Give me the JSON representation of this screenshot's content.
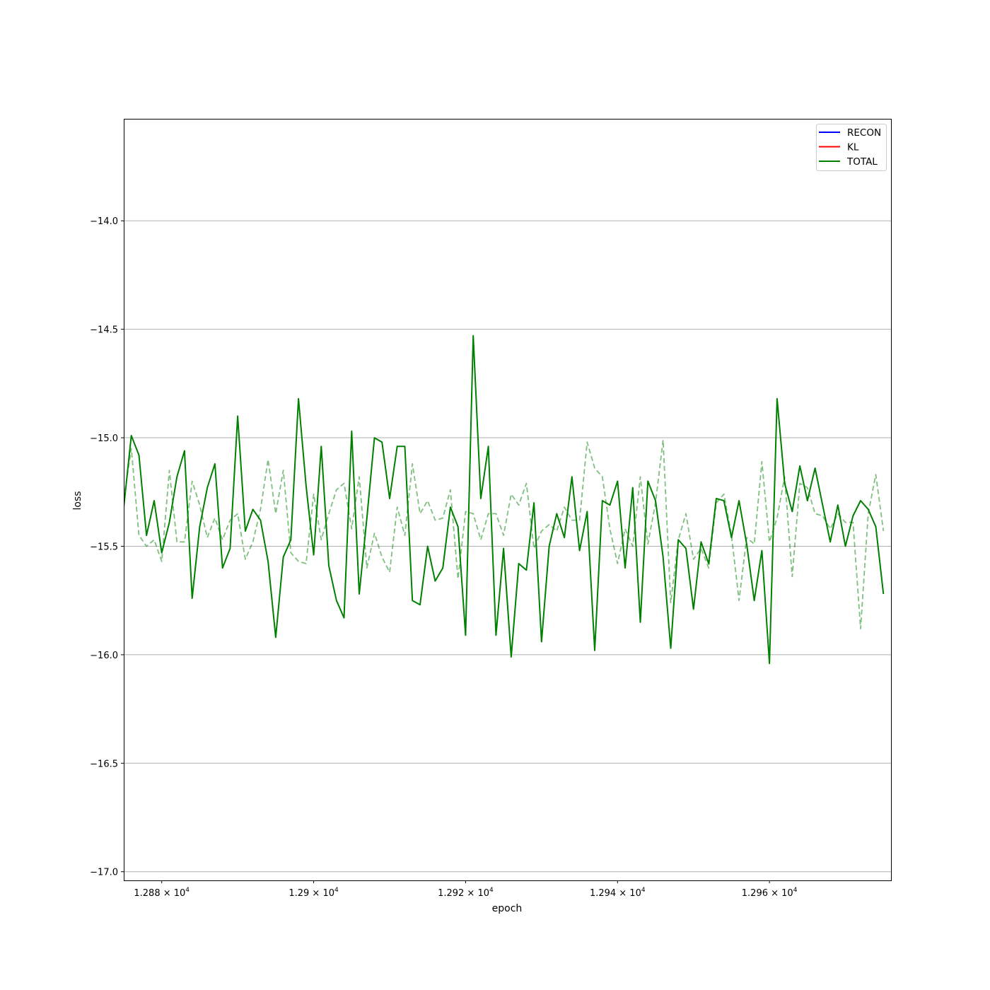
{
  "chart_data": {
    "type": "line",
    "title": "",
    "xlabel": "epoch",
    "ylabel": "loss",
    "xlim": [
      12875,
      12976
    ],
    "ylim": [
      -17.04,
      -13.53
    ],
    "grid": "horizontal",
    "legend_position": "top-right",
    "x_ticks": [
      {
        "value": 12880,
        "base": "1.288 × 10",
        "exp": "4"
      },
      {
        "value": 12900,
        "base": "1.29 × 10",
        "exp": "4"
      },
      {
        "value": 12920,
        "base": "1.292 × 10",
        "exp": "4"
      },
      {
        "value": 12940,
        "base": "1.294 × 10",
        "exp": "4"
      },
      {
        "value": 12960,
        "base": "1.296 × 10",
        "exp": "4"
      }
    ],
    "y_ticks": [
      {
        "value": -14.0,
        "label": "−14.0"
      },
      {
        "value": -14.5,
        "label": "−14.5"
      },
      {
        "value": -15.0,
        "label": "−15.0"
      },
      {
        "value": -15.5,
        "label": "−15.5"
      },
      {
        "value": -16.0,
        "label": "−16.0"
      },
      {
        "value": -16.5,
        "label": "−16.5"
      },
      {
        "value": -17.0,
        "label": "−17.0"
      }
    ],
    "legend": [
      {
        "name": "RECON",
        "color": "#0000ff"
      },
      {
        "name": "KL",
        "color": "#ff0000"
      },
      {
        "name": "TOTAL",
        "color": "#008000"
      }
    ],
    "x_start": 12875,
    "series": [
      {
        "name": "TOTAL",
        "style": "solid",
        "color": "#008000",
        "values": [
          -15.32,
          -14.99,
          -15.08,
          -15.45,
          -15.29,
          -15.53,
          -15.39,
          -15.18,
          -15.06,
          -15.74,
          -15.41,
          -15.23,
          -15.12,
          -15.6,
          -15.51,
          -14.9,
          -15.43,
          -15.33,
          -15.38,
          -15.57,
          -15.92,
          -15.55,
          -15.47,
          -14.82,
          -15.22,
          -15.54,
          -15.04,
          -15.59,
          -15.75,
          -15.83,
          -14.97,
          -15.72,
          -15.37,
          -15.0,
          -15.02,
          -15.28,
          -15.04,
          -15.04,
          -15.75,
          -15.77,
          -15.5,
          -15.66,
          -15.6,
          -15.32,
          -15.41,
          -15.91,
          -14.53,
          -15.28,
          -15.04,
          -15.91,
          -15.51,
          -16.01,
          -15.58,
          -15.61,
          -15.3,
          -15.94,
          -15.5,
          -15.35,
          -15.46,
          -15.18,
          -15.52,
          -15.34,
          -15.98,
          -15.29,
          -15.31,
          -15.2,
          -15.6,
          -15.23,
          -15.85,
          -15.2,
          -15.29,
          -15.55,
          -15.97,
          -15.47,
          -15.51,
          -15.79,
          -15.48,
          -15.58,
          -15.28,
          -15.29,
          -15.46,
          -15.29,
          -15.49,
          -15.75,
          -15.52,
          -16.04,
          -14.82,
          -15.21,
          -15.34,
          -15.13,
          -15.29,
          -15.14,
          -15.31,
          -15.48,
          -15.31,
          -15.5,
          -15.36,
          -15.29,
          -15.33,
          -15.41,
          -15.72
        ]
      },
      {
        "name": "",
        "style": "dashed",
        "color": "#008000",
        "opacity": 0.5,
        "values": [
          -15.28,
          -15.05,
          -15.45,
          -15.5,
          -15.47,
          -15.57,
          -15.15,
          -15.48,
          -15.48,
          -15.2,
          -15.31,
          -15.46,
          -15.37,
          -15.47,
          -15.38,
          -15.35,
          -15.56,
          -15.48,
          -15.33,
          -15.1,
          -15.35,
          -15.15,
          -15.53,
          -15.57,
          -15.58,
          -15.26,
          -15.47,
          -15.35,
          -15.24,
          -15.21,
          -15.42,
          -15.18,
          -15.6,
          -15.44,
          -15.55,
          -15.62,
          -15.32,
          -15.45,
          -15.12,
          -15.35,
          -15.29,
          -15.38,
          -15.37,
          -15.24,
          -15.65,
          -15.34,
          -15.35,
          -15.47,
          -15.35,
          -15.35,
          -15.45,
          -15.26,
          -15.31,
          -15.21,
          -15.51,
          -15.43,
          -15.4,
          -15.43,
          -15.32,
          -15.38,
          -15.38,
          -15.02,
          -15.14,
          -15.18,
          -15.42,
          -15.58,
          -15.42,
          -15.5,
          -15.18,
          -15.49,
          -15.3,
          -15.01,
          -15.76,
          -15.47,
          -15.35,
          -15.56,
          -15.51,
          -15.6,
          -15.3,
          -15.26,
          -15.45,
          -15.75,
          -15.46,
          -15.49,
          -15.11,
          -15.48,
          -15.37,
          -15.18,
          -15.64,
          -15.21,
          -15.23,
          -15.35,
          -15.36,
          -15.42,
          -15.35,
          -15.39,
          -15.39,
          -15.88,
          -15.35,
          -15.17,
          -15.43
        ]
      }
    ]
  }
}
